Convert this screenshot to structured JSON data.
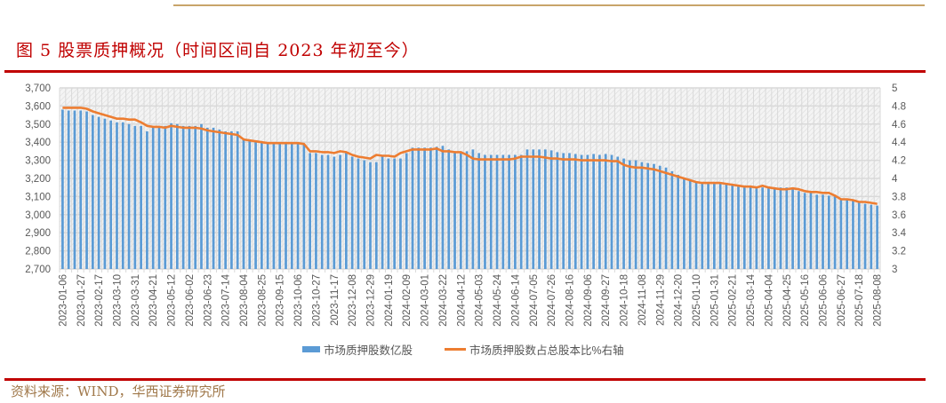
{
  "header": {
    "title": "图 5   股票质押概况（时间区间自 2023 年初至今）"
  },
  "footer": {
    "source": "资料来源：WIND，华西证券研究所"
  },
  "colors": {
    "bar": "#5b9bd5",
    "line": "#ed7d31",
    "title": "#c00000",
    "rule": "#c00000"
  },
  "chart_data": {
    "type": "bar+line",
    "title": "",
    "frequency": "weekly",
    "start_date": "2023-01-06",
    "end_date": "2025-08-08",
    "x_tick_labels": [
      "2023-01-06",
      "2023-01-27",
      "2023-02-17",
      "2023-03-10",
      "2023-03-31",
      "2023-04-21",
      "2023-05-12",
      "2023-06-02",
      "2023-06-23",
      "2023-07-14",
      "2023-08-04",
      "2023-08-25",
      "2023-09-15",
      "2023-10-06",
      "2023-10-27",
      "2023-11-17",
      "2023-12-08",
      "2023-12-29",
      "2024-01-19",
      "2024-02-09",
      "2024-03-01",
      "2024-03-22",
      "2024-04-12",
      "2024-05-03",
      "2024-05-24",
      "2024-06-14",
      "2024-07-05",
      "2024-07-26",
      "2024-08-16",
      "2024-09-06",
      "2024-09-27",
      "2024-10-18",
      "2024-11-08",
      "2024-11-29",
      "2024-12-20",
      "2025-01-10",
      "2025-01-31",
      "2025-02-21",
      "2025-03-14",
      "2025-04-04",
      "2025-04-25",
      "2025-05-16",
      "2025-06-06",
      "2025-06-27",
      "2025-07-18",
      "2025-08-08"
    ],
    "y_left": {
      "range": [
        2700,
        3700
      ],
      "ticks": [
        "2,700",
        "2,800",
        "2,900",
        "3,000",
        "3,100",
        "3,200",
        "3,300",
        "3,400",
        "3,500",
        "3,600",
        "3,700"
      ]
    },
    "y_right": {
      "range": [
        3,
        5
      ],
      "ticks": [
        "3",
        "3.2",
        "3.4",
        "3.6",
        "3.8",
        "4",
        "4.2",
        "4.4",
        "4.6",
        "4.8",
        "5"
      ]
    },
    "grid": true,
    "legend_position": "bottom",
    "series": [
      {
        "name": "市场质押股数亿股",
        "type": "bar",
        "axis": "left",
        "values": [
          3580,
          3575,
          3575,
          3575,
          3570,
          3550,
          3540,
          3530,
          3520,
          3510,
          3510,
          3500,
          3490,
          3490,
          3460,
          3480,
          3490,
          3490,
          3505,
          3500,
          3490,
          3490,
          3490,
          3500,
          3480,
          3480,
          3470,
          3460,
          3460,
          3460,
          3420,
          3410,
          3400,
          3400,
          3395,
          3390,
          3390,
          3390,
          3390,
          3390,
          3390,
          3340,
          3340,
          3330,
          3330,
          3320,
          3330,
          3340,
          3320,
          3310,
          3300,
          3290,
          3290,
          3330,
          3310,
          3310,
          3310,
          3340,
          3370,
          3370,
          3370,
          3370,
          3375,
          3380,
          3360,
          3350,
          3350,
          3350,
          3360,
          3340,
          3330,
          3330,
          3330,
          3330,
          3330,
          3330,
          3330,
          3360,
          3360,
          3360,
          3360,
          3355,
          3345,
          3340,
          3340,
          3335,
          3330,
          3330,
          3335,
          3330,
          3335,
          3330,
          3320,
          3310,
          3300,
          3300,
          3290,
          3285,
          3280,
          3270,
          3260,
          3240,
          3220,
          3200,
          3190,
          3180,
          3170,
          3170,
          3170,
          3170,
          3170,
          3165,
          3160,
          3150,
          3150,
          3145,
          3150,
          3145,
          3150,
          3150,
          3150,
          3140,
          3130,
          3120,
          3120,
          3110,
          3110,
          3105,
          3100,
          3090,
          3085,
          3080,
          3070,
          3060,
          3055,
          3050
        ]
      },
      {
        "name": "市场质押股数占总股本比%右轴",
        "type": "line",
        "axis": "right",
        "values": [
          4.78,
          4.78,
          4.78,
          4.78,
          4.77,
          4.74,
          4.72,
          4.7,
          4.68,
          4.66,
          4.66,
          4.65,
          4.65,
          4.62,
          4.58,
          4.57,
          4.57,
          4.56,
          4.58,
          4.57,
          4.56,
          4.56,
          4.56,
          4.55,
          4.53,
          4.52,
          4.51,
          4.5,
          4.49,
          4.48,
          4.43,
          4.42,
          4.41,
          4.4,
          4.39,
          4.39,
          4.39,
          4.39,
          4.39,
          4.39,
          4.38,
          4.3,
          4.3,
          4.29,
          4.29,
          4.28,
          4.3,
          4.29,
          4.26,
          4.24,
          4.23,
          4.22,
          4.26,
          4.25,
          4.25,
          4.24,
          4.28,
          4.3,
          4.32,
          4.32,
          4.32,
          4.32,
          4.33,
          4.3,
          4.3,
          4.29,
          4.29,
          4.26,
          4.22,
          4.21,
          4.21,
          4.21,
          4.21,
          4.21,
          4.21,
          4.22,
          4.24,
          4.24,
          4.24,
          4.24,
          4.23,
          4.22,
          4.22,
          4.21,
          4.21,
          4.21,
          4.2,
          4.2,
          4.2,
          4.2,
          4.2,
          4.19,
          4.19,
          4.15,
          4.13,
          4.12,
          4.12,
          4.11,
          4.1,
          4.08,
          4.06,
          4.04,
          4.02,
          4.0,
          3.98,
          3.96,
          3.95,
          3.95,
          3.95,
          3.95,
          3.94,
          3.93,
          3.92,
          3.91,
          3.91,
          3.9,
          3.92,
          3.9,
          3.89,
          3.88,
          3.88,
          3.89,
          3.88,
          3.86,
          3.85,
          3.85,
          3.84,
          3.84,
          3.81,
          3.77,
          3.77,
          3.76,
          3.74,
          3.74,
          3.73,
          3.72
        ]
      }
    ]
  }
}
